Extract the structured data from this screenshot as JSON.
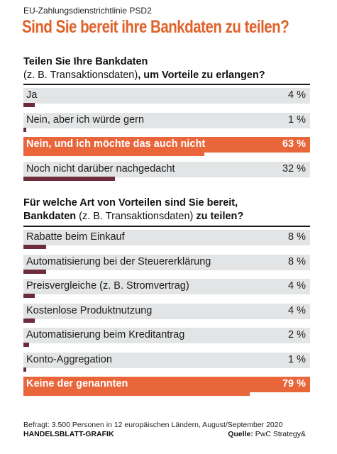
{
  "kicker": "EU-Zahlungsdienstrichtlinie PSD2",
  "headline": "Sind Sie bereit ihre Bankdaten zu teilen?",
  "colors": {
    "accent": "#e9653a",
    "bar": "#6e2b3a",
    "row_bg": "#e3e4e5"
  },
  "chart_data": [
    {
      "type": "bar",
      "orientation": "horizontal",
      "title_bold_1": "Teilen Sie Ihre Bankdaten",
      "title_normal": "(z. B. Transaktionsdaten)",
      "title_bold_2": ", um Vorteile zu erlangen?",
      "unit": "%",
      "categories": [
        "Ja",
        "Nein, aber ich würde gern",
        "Nein, und ich möchte das auch nicht",
        "Noch nicht darüber nachgedacht"
      ],
      "values": [
        4,
        1,
        63,
        32
      ],
      "labels": [
        "4 %",
        "1 %",
        "63 %",
        "32 %"
      ],
      "highlight": [
        false,
        false,
        true,
        false
      ],
      "xlim": [
        0,
        100
      ]
    },
    {
      "type": "bar",
      "orientation": "horizontal",
      "title_bold_1": "Für welche Art von Vorteilen sind Sie bereit,",
      "title_bold_1b": "Bankdaten",
      "title_normal": " (z. B. Transaktionsdaten) ",
      "title_bold_2": "zu teilen?",
      "unit": "%",
      "categories": [
        "Rabatte beim Einkauf",
        "Automatisierung bei der Steuererklärung",
        "Preisvergleiche (z. B. Stromvertrag)",
        "Kostenlose Produktnutzung",
        "Automatisierung beim Kreditantrag",
        "Konto-Aggregation",
        "Keine der genannten"
      ],
      "values": [
        8,
        8,
        4,
        4,
        2,
        1,
        79
      ],
      "labels": [
        "8 %",
        "8 %",
        "4 %",
        "4 %",
        "2 %",
        "1 %",
        "79 %"
      ],
      "highlight": [
        false,
        false,
        false,
        false,
        false,
        false,
        true
      ],
      "xlim": [
        0,
        100
      ]
    }
  ],
  "footnote": "Befragt: 3.500 Personen in 12 europäischen Ländern, August/September 2020",
  "credit": "HANDELSBLATT-GRAFIK",
  "source_label": "Quelle:",
  "source_value": " PwC Strategy&"
}
